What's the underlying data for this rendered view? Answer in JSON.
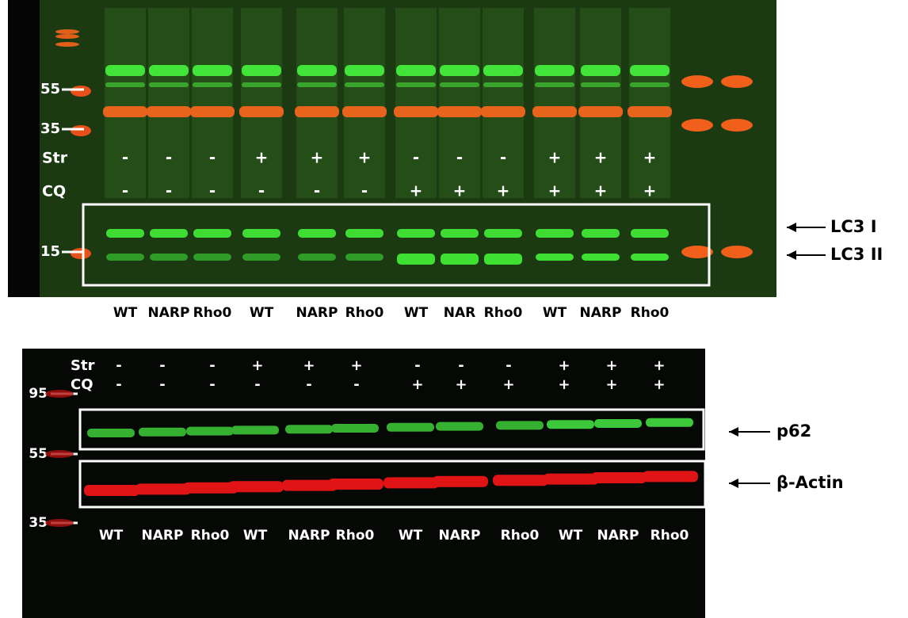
{
  "top_blot": {
    "markers": [
      55,
      35,
      15
    ],
    "rows": [
      {
        "label": "Str",
        "signs": [
          "-",
          "-",
          "-",
          "+",
          "+",
          "+",
          "-",
          "-",
          "-",
          "+",
          "+",
          "+"
        ]
      },
      {
        "label": "CQ",
        "signs": [
          "-",
          "-",
          "-",
          "-",
          "-",
          "-",
          "+",
          "+",
          "+",
          "+",
          "+",
          "+"
        ]
      }
    ],
    "bands": [
      "LC3  I",
      "LC3 II"
    ],
    "lanes": [
      "WT",
      "NARP",
      "Rho0",
      "WT",
      "NARP",
      "Rho0",
      "WT",
      "NAR",
      "Rho0",
      "WT",
      "NARP",
      "Rho0"
    ]
  },
  "bottom_blot": {
    "markers": [
      95,
      55,
      35
    ],
    "rows": [
      {
        "label": "Str",
        "signs": [
          "-",
          "-",
          "-",
          "+",
          "+",
          "+",
          "-",
          "-",
          "-",
          "+",
          "+",
          "+"
        ]
      },
      {
        "label": "CQ",
        "signs": [
          "-",
          "-",
          "-",
          "-",
          "-",
          "-",
          "+",
          "+",
          "+",
          "+",
          "+",
          "+"
        ]
      }
    ],
    "bands": [
      "p62",
      "β-Actin"
    ],
    "lanes": [
      "WT",
      "NARP",
      "Rho0",
      "WT",
      "NARP",
      "Rho0",
      "WT",
      "NARP",
      "Rho0",
      "WT",
      "NARP",
      "Rho0"
    ]
  }
}
